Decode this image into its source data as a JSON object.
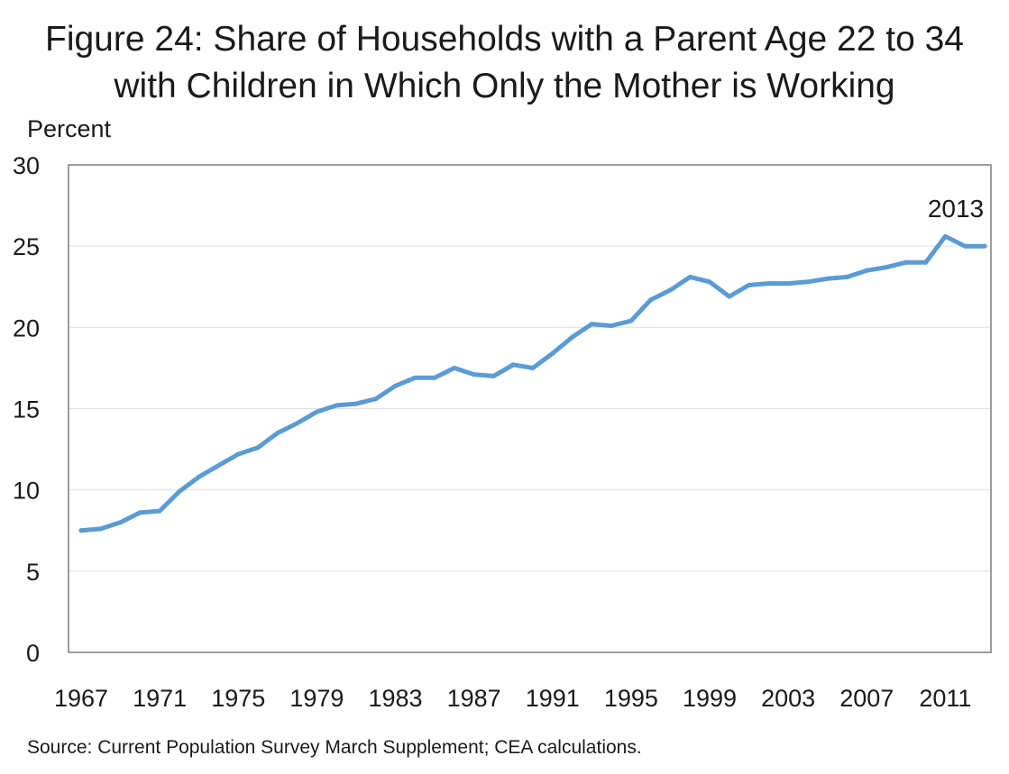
{
  "title_line1": "Figure 24: Share of Households with a Parent Age 22 to 34",
  "title_line2": "with Children in Which Only the Mother is Working",
  "source": "Source: Current Population Survey March Supplement; CEA calculations.",
  "chart_data": {
    "type": "line",
    "title": "Figure 24: Share of Households with a Parent Age 22 to 34 with Children in Which Only the Mother is Working",
    "ylabel": "Percent",
    "xlabel": "",
    "ylim": [
      0,
      30
    ],
    "yticks": [
      0,
      5,
      10,
      15,
      20,
      25,
      30
    ],
    "xticks": [
      "1967",
      "1971",
      "1975",
      "1979",
      "1983",
      "1987",
      "1991",
      "1995",
      "1999",
      "2003",
      "2007",
      "2011"
    ],
    "xlim": [
      1967,
      2013
    ],
    "grid": true,
    "line_color": "#5b9bd5",
    "annotation": "2013",
    "series": [
      {
        "x": [
          1967,
          1968,
          1969,
          1970,
          1971,
          1972,
          1973,
          1974,
          1975,
          1976,
          1977,
          1978,
          1979,
          1980,
          1981,
          1982,
          1983,
          1984,
          1985,
          1986,
          1987,
          1988,
          1989,
          1990,
          1991,
          1992,
          1993,
          1994,
          1995,
          1996,
          1997,
          1998,
          1999,
          2000,
          2001,
          2002,
          2003,
          2004,
          2005,
          2006,
          2007,
          2008,
          2009,
          2010,
          2011,
          2012,
          2013
        ],
        "values": [
          7.5,
          7.6,
          8.0,
          8.6,
          8.7,
          9.9,
          10.8,
          11.5,
          12.2,
          12.6,
          13.5,
          14.1,
          14.8,
          15.2,
          15.3,
          15.6,
          16.4,
          16.9,
          16.9,
          17.5,
          17.1,
          17.0,
          17.7,
          17.5,
          18.4,
          19.4,
          20.2,
          20.1,
          20.4,
          21.7,
          22.3,
          23.1,
          22.8,
          21.9,
          22.6,
          22.7,
          22.7,
          22.8,
          23.0,
          23.1,
          23.5,
          23.7,
          24.0,
          24.0,
          25.6,
          25.0,
          25.0
        ]
      }
    ]
  }
}
